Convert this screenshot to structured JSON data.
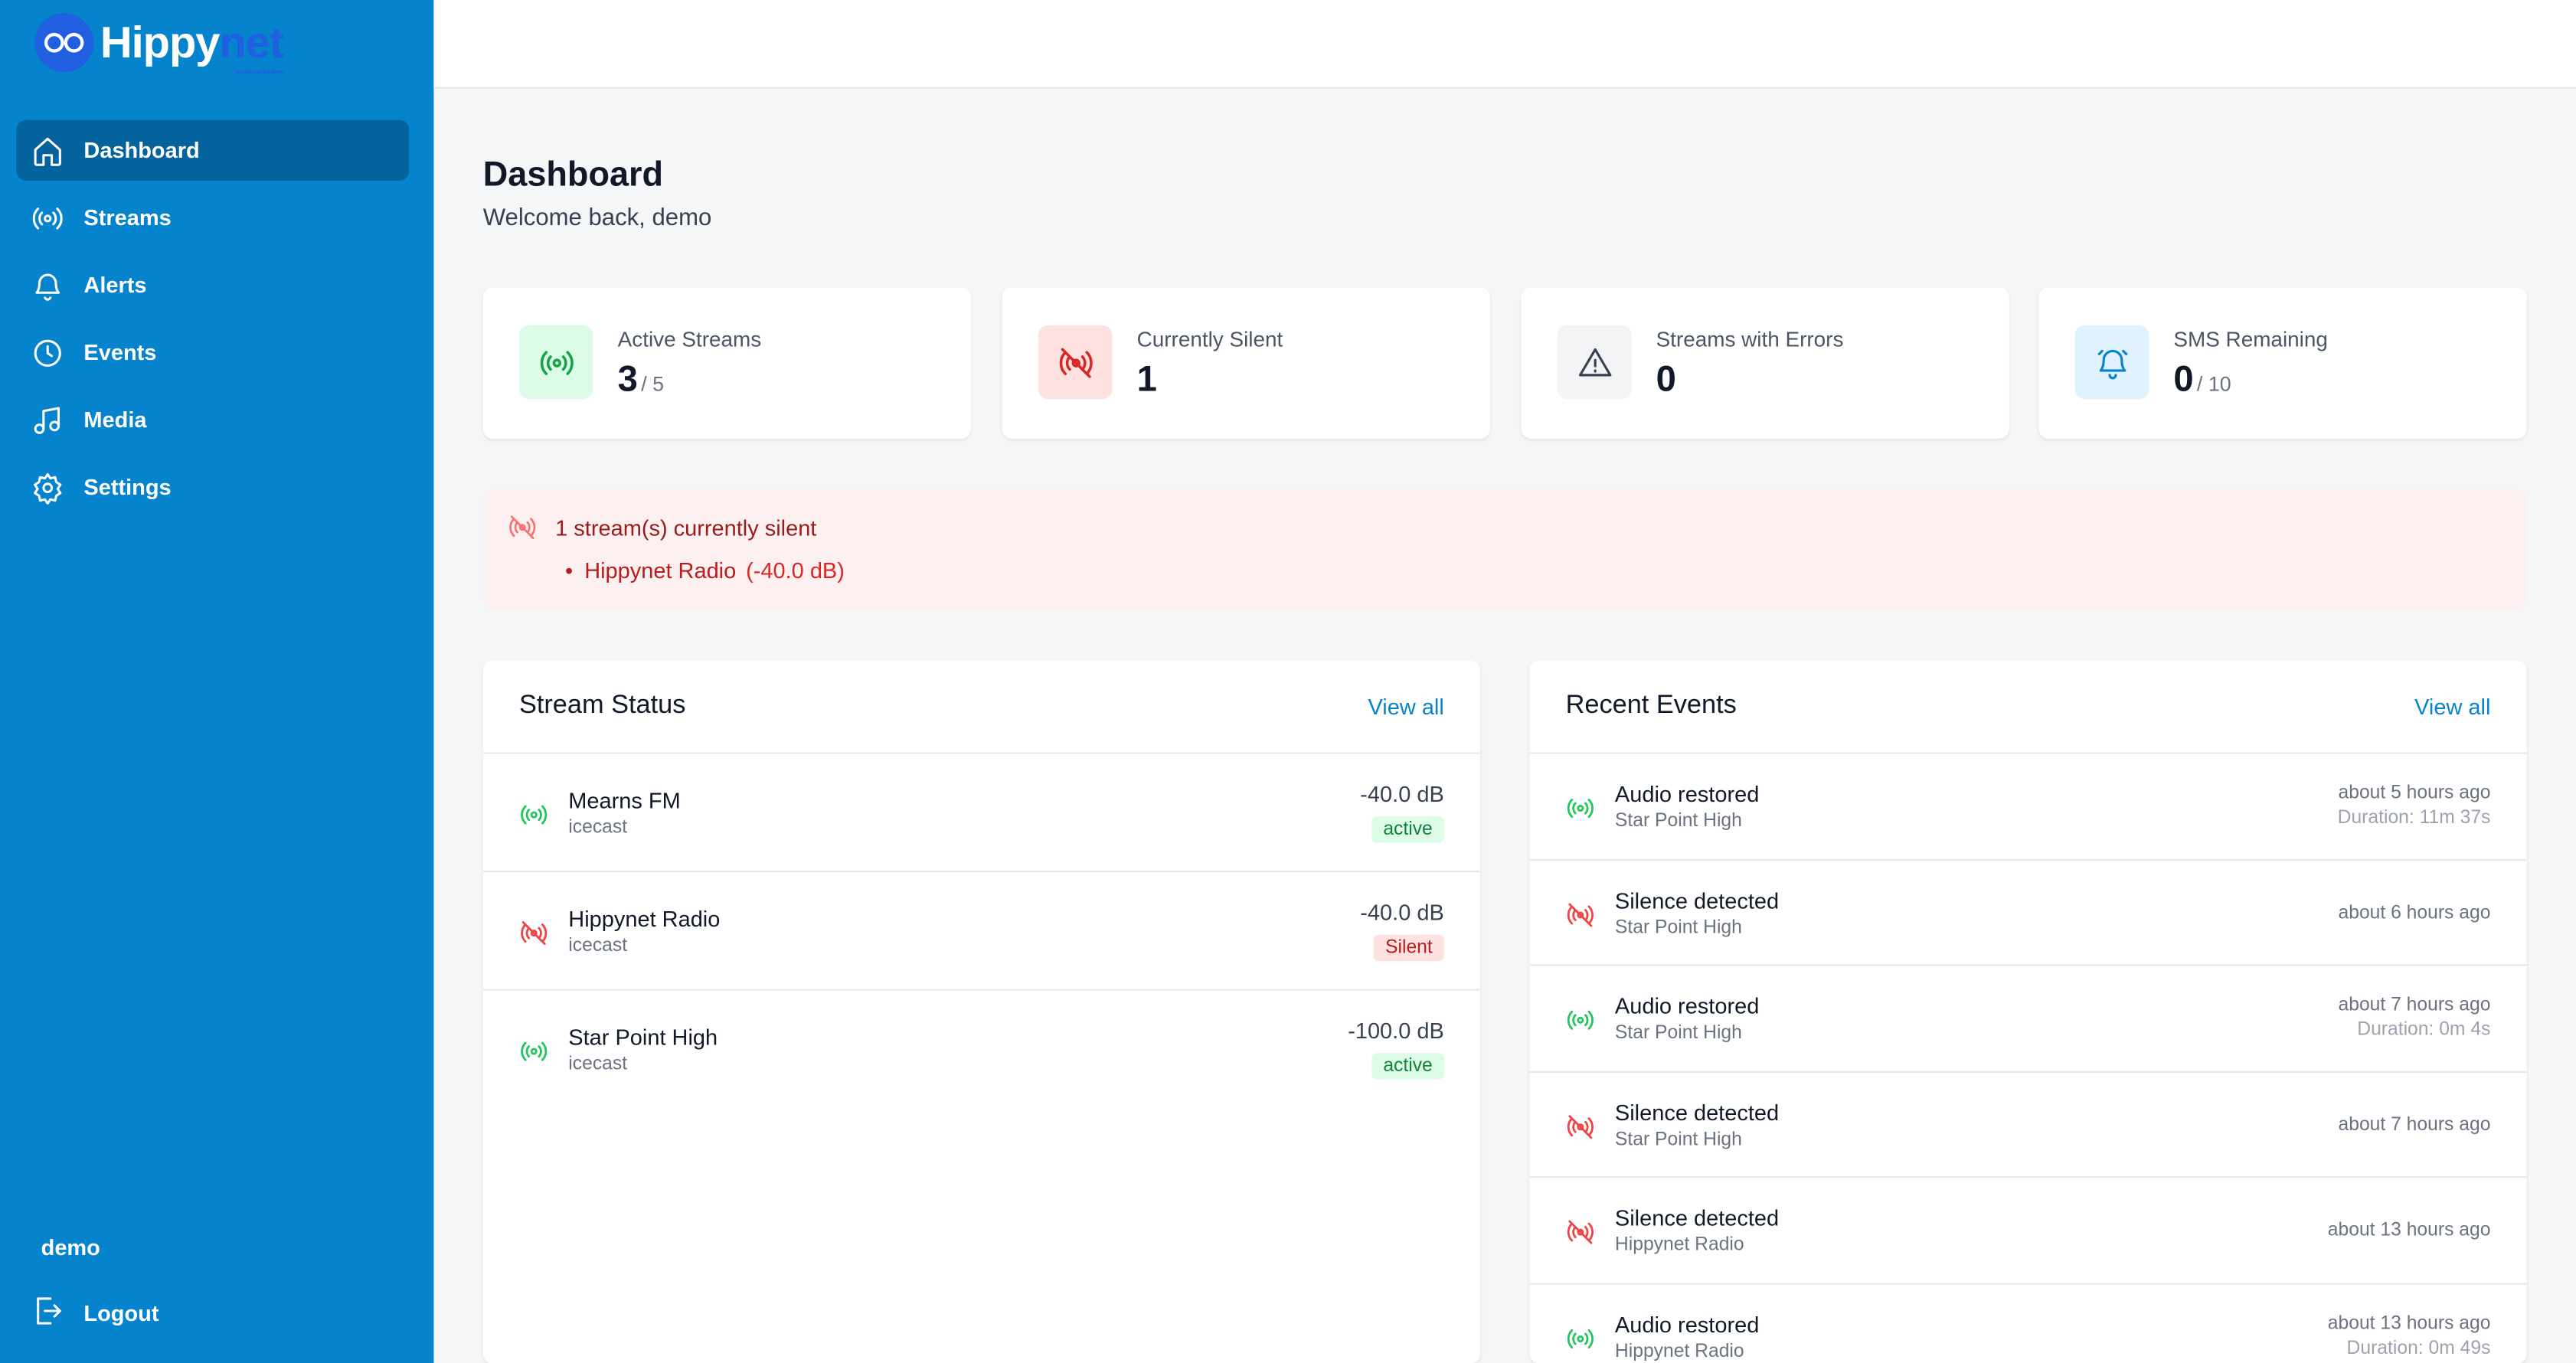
{
  "brand": {
    "name_part1": "Hippy",
    "name_part2": "net",
    "tagline": "Broadcast Solutions"
  },
  "sidebar": {
    "items": [
      {
        "label": "Dashboard",
        "icon": "home-icon",
        "active": true
      },
      {
        "label": "Streams",
        "icon": "broadcast-icon",
        "active": false
      },
      {
        "label": "Alerts",
        "icon": "bell-icon",
        "active": false
      },
      {
        "label": "Events",
        "icon": "clock-icon",
        "active": false
      },
      {
        "label": "Media",
        "icon": "music-icon",
        "active": false
      },
      {
        "label": "Settings",
        "icon": "gear-icon",
        "active": false
      }
    ],
    "user": "demo",
    "logout_label": "Logout"
  },
  "header": {
    "title": "Dashboard",
    "welcome": "Welcome back, demo"
  },
  "stats": [
    {
      "label": "Active Streams",
      "value": "3",
      "sub": "/ 5",
      "icon": "broadcast-icon",
      "color": "#16a34a"
    },
    {
      "label": "Currently Silent",
      "value": "1",
      "sub": "",
      "icon": "broadcast-off-icon",
      "color": "#dc2626"
    },
    {
      "label": "Streams with Errors",
      "value": "0",
      "sub": "",
      "icon": "warning-icon",
      "color": "#374151"
    },
    {
      "label": "SMS Remaining",
      "value": "0",
      "sub": "/ 10",
      "icon": "bell-ring-icon",
      "color": "#0683cd"
    }
  ],
  "silent_banner": {
    "title": "1 stream(s) currently silent",
    "items": [
      {
        "name": "Hippynet Radio",
        "level": "(-40.0 dB)"
      }
    ]
  },
  "stream_status": {
    "title": "Stream Status",
    "view_all": "View all",
    "rows": [
      {
        "name": "Mearns FM",
        "type": "icecast",
        "level": "-40.0 dB",
        "status": "active"
      },
      {
        "name": "Hippynet Radio",
        "type": "icecast",
        "level": "-40.0 dB",
        "status": "Silent"
      },
      {
        "name": "Star Point High",
        "type": "icecast",
        "level": "-100.0 dB",
        "status": "active"
      }
    ]
  },
  "recent_events": {
    "title": "Recent Events",
    "view_all": "View all",
    "rows": [
      {
        "title": "Audio restored",
        "stream": "Star Point High",
        "time": "about 5 hours ago",
        "duration": "Duration: 11m 37s",
        "kind": "restored"
      },
      {
        "title": "Silence detected",
        "stream": "Star Point High",
        "time": "about 6 hours ago",
        "duration": "",
        "kind": "silence"
      },
      {
        "title": "Audio restored",
        "stream": "Star Point High",
        "time": "about 7 hours ago",
        "duration": "Duration: 0m 4s",
        "kind": "restored"
      },
      {
        "title": "Silence detected",
        "stream": "Star Point High",
        "time": "about 7 hours ago",
        "duration": "",
        "kind": "silence"
      },
      {
        "title": "Silence detected",
        "stream": "Hippynet Radio",
        "time": "about 13 hours ago",
        "duration": "",
        "kind": "silence"
      },
      {
        "title": "Audio restored",
        "stream": "Hippynet Radio",
        "time": "about 13 hours ago",
        "duration": "Duration: 0m 49s",
        "kind": "restored"
      }
    ]
  },
  "colors": {
    "sidebar": "#0683cd",
    "sidebar_active": "#04629d",
    "ok": "#16a34a",
    "silent": "#dc2626",
    "link": "#0683cd"
  }
}
